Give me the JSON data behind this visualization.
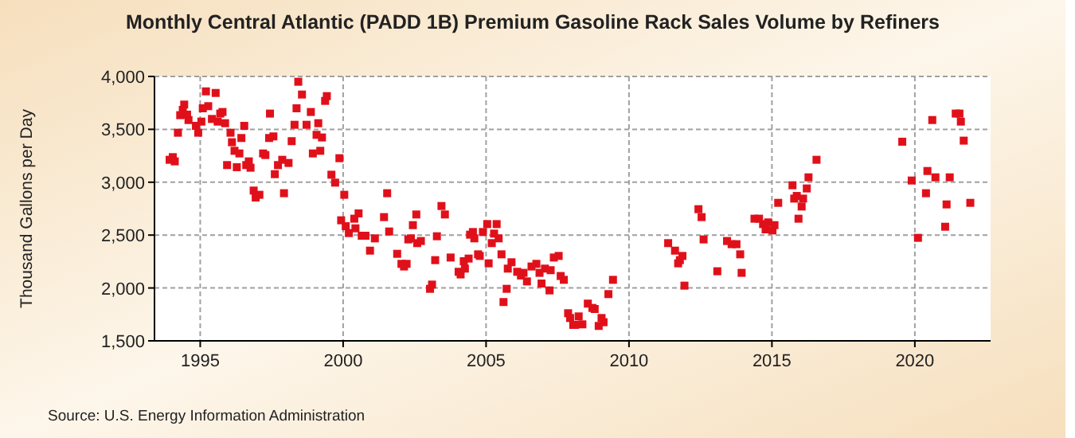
{
  "chart_data": {
    "type": "scatter",
    "title": "Monthly Central Atlantic (PADD 1B) Premium Gasoline Rack Sales Volume by Refiners",
    "ylabel": "Thousand Gallons per Day",
    "annotations": [
      "Source: U.S. Energy Information Administration"
    ],
    "x": [
      1993.93,
      1994.04,
      1994.11,
      1994.22,
      1994.3,
      1994.39,
      1994.44,
      1994.54,
      1994.59,
      1994.85,
      1994.93,
      1995.04,
      1995.09,
      1995.2,
      1995.28,
      1995.41,
      1995.54,
      1995.61,
      1995.7,
      1995.78,
      1995.87,
      1995.94,
      1996.06,
      1996.11,
      1996.2,
      1996.28,
      1996.37,
      1996.44,
      1996.54,
      1996.61,
      1996.7,
      1996.76,
      1996.87,
      1996.94,
      1997.07,
      1997.2,
      1997.28,
      1997.41,
      1997.44,
      1997.56,
      1997.61,
      1997.72,
      1997.87,
      1997.93,
      1998.09,
      1998.2,
      1998.3,
      1998.37,
      1998.43,
      1998.56,
      1998.72,
      1998.87,
      1998.94,
      1999.07,
      1999.13,
      1999.2,
      1999.26,
      1999.37,
      1999.43,
      1999.59,
      1999.72,
      1999.87,
      1999.93,
      2000.04,
      2000.09,
      2000.2,
      2000.39,
      2000.43,
      2000.54,
      2000.65,
      2000.78,
      2000.94,
      2001.11,
      2001.43,
      2001.54,
      2001.61,
      2001.89,
      2002.04,
      2002.13,
      2002.22,
      2002.28,
      2002.37,
      2002.44,
      2002.56,
      2002.59,
      2002.72,
      2003.04,
      2003.11,
      2003.22,
      2003.28,
      2003.44,
      2003.56,
      2003.76,
      2004.04,
      2004.11,
      2004.22,
      2004.26,
      2004.39,
      2004.44,
      2004.54,
      2004.59,
      2004.72,
      2004.78,
      2004.89,
      2005.04,
      2005.09,
      2005.2,
      2005.28,
      2005.37,
      2005.44,
      2005.54,
      2005.61,
      2005.72,
      2005.76,
      2005.89,
      2006.09,
      2006.22,
      2006.31,
      2006.43,
      2006.59,
      2006.76,
      2006.87,
      2006.94,
      2007.06,
      2007.22,
      2007.26,
      2007.37,
      2007.54,
      2007.61,
      2007.72,
      2007.87,
      2007.94,
      2008.05,
      2008.11,
      2008.24,
      2008.37,
      2008.56,
      2008.72,
      2008.8,
      2008.94,
      2009.04,
      2009.11,
      2009.28,
      2009.44,
      2011.37,
      2011.61,
      2011.72,
      2011.78,
      2011.87,
      2011.94,
      2012.43,
      2012.54,
      2012.61,
      2013.09,
      2013.43,
      2013.59,
      2013.76,
      2013.89,
      2013.94,
      2014.39,
      2014.55,
      2014.69,
      2014.78,
      2014.87,
      2015.02,
      2015.09,
      2015.22,
      2015.72,
      2015.78,
      2015.87,
      2015.93,
      2016.04,
      2016.09,
      2016.22,
      2016.28,
      2016.56,
      2019.56,
      2019.89,
      2020.11,
      2020.39,
      2020.44,
      2020.61,
      2020.72,
      2021.06,
      2021.11,
      2021.22,
      2021.43,
      2021.56,
      2021.61,
      2021.71,
      2021.94
    ],
    "series": [
      {
        "color": "#e0101a",
        "values": [
          3212,
          3237,
          3197,
          3468,
          3634,
          3684,
          3734,
          3639,
          3588,
          3533,
          3468,
          3573,
          3699,
          3859,
          3719,
          3598,
          3844,
          3573,
          3649,
          3664,
          3558,
          3162,
          3468,
          3378,
          3297,
          3142,
          3272,
          3418,
          3533,
          3162,
          3197,
          3137,
          2921,
          2855,
          2881,
          3272,
          3257,
          3418,
          3649,
          3433,
          3076,
          3162,
          3212,
          2896,
          3182,
          3388,
          3543,
          3699,
          3950,
          3829,
          3543,
          3664,
          3272,
          3448,
          3558,
          3297,
          3423,
          3769,
          3814,
          3071,
          2996,
          3227,
          2640,
          2881,
          2584,
          2519,
          2655,
          2564,
          2705,
          2494,
          2494,
          2353,
          2469,
          2670,
          2896,
          2534,
          2323,
          2228,
          2203,
          2228,
          2459,
          2469,
          2594,
          2695,
          2424,
          2444,
          1992,
          2032,
          2263,
          2489,
          2775,
          2695,
          2288,
          2153,
          2128,
          2253,
          2183,
          2278,
          2504,
          2529,
          2469,
          2318,
          2303,
          2529,
          2604,
          2233,
          2424,
          2514,
          2604,
          2469,
          2318,
          1867,
          1992,
          2183,
          2243,
          2153,
          2118,
          2143,
          2062,
          2203,
          2228,
          2143,
          2042,
          2183,
          1977,
          2168,
          2288,
          2303,
          2113,
          2077,
          1761,
          1716,
          1651,
          1651,
          1731,
          1656,
          1852,
          1811,
          1801,
          1641,
          1716,
          1676,
          1942,
          2077,
          2424,
          2353,
          2233,
          2263,
          2303,
          2022,
          2745,
          2670,
          2459,
          2158,
          2444,
          2414,
          2414,
          2318,
          2143,
          2655,
          2655,
          2604,
          2554,
          2620,
          2544,
          2594,
          2805,
          2971,
          2845,
          2870,
          2655,
          2770,
          2845,
          2941,
          3046,
          3212,
          3383,
          3016,
          2474,
          2896,
          3106,
          3588,
          3046,
          2579,
          2790,
          3046,
          3649,
          3649,
          3573,
          3393,
          2805
        ]
      }
    ],
    "xlim": [
      1993.4,
      2022.65
    ],
    "xticks": [
      1995,
      2000,
      2005,
      2010,
      2015,
      2020
    ],
    "ylim": [
      1500,
      4000
    ],
    "yticks": [
      {
        "value": 1500,
        "label": "1,500"
      },
      {
        "value": 2000,
        "label": "2,000"
      },
      {
        "value": 2500,
        "label": "2,500"
      },
      {
        "value": 3000,
        "label": "3,000"
      },
      {
        "value": 3500,
        "label": "3,500"
      },
      {
        "value": 4000,
        "label": "4,000"
      }
    ],
    "grid": true,
    "marker": "square"
  }
}
